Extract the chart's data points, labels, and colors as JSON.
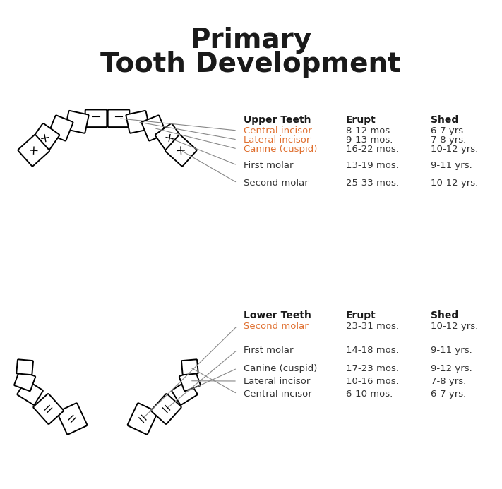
{
  "title_line1": "Primary",
  "title_line2": "Tooth Development",
  "title_color": "#1a1a1a",
  "title_fontsize": 28,
  "bg_color": "#ffffff",
  "upper_header": [
    "Upper Teeth",
    "Erupt",
    "Shed"
  ],
  "lower_header": [
    "Lower Teeth",
    "Erupt",
    "Shed"
  ],
  "upper_teeth": [
    {
      "name": "Central incisor",
      "erupt": "8-12 mos.",
      "shed": "6-7 yrs.",
      "color": "#e07030"
    },
    {
      "name": "Lateral incisor",
      "erupt": "9-13 mos.",
      "shed": "7-8 yrs.",
      "color": "#e07030"
    },
    {
      "name": "Canine (cuspid)",
      "erupt": "16-22 mos.",
      "shed": "10-12 yrs.",
      "color": "#e07030"
    },
    {
      "name": "First molar",
      "erupt": "13-19 mos.",
      "shed": "9-11 yrs.",
      "color": "#333333"
    },
    {
      "name": "Second molar",
      "erupt": "25-33 mos.",
      "shed": "10-12 yrs.",
      "color": "#333333"
    }
  ],
  "lower_teeth": [
    {
      "name": "Second molar",
      "erupt": "23-31 mos.",
      "shed": "10-12 yrs.",
      "color": "#e07030"
    },
    {
      "name": "First molar",
      "erupt": "14-18 mos.",
      "shed": "9-11 yrs.",
      "color": "#333333"
    },
    {
      "name": "Canine (cuspid)",
      "erupt": "17-23 mos.",
      "shed": "9-12 yrs.",
      "color": "#333333"
    },
    {
      "name": "Lateral incisor",
      "erupt": "10-16 mos.",
      "shed": "7-8 yrs.",
      "color": "#333333"
    },
    {
      "name": "Central incisor",
      "erupt": "6-10 mos.",
      "shed": "6-7 yrs.",
      "color": "#333333"
    }
  ],
  "line_color": "#888888",
  "text_color": "#333333",
  "header_color": "#1a1a1a"
}
